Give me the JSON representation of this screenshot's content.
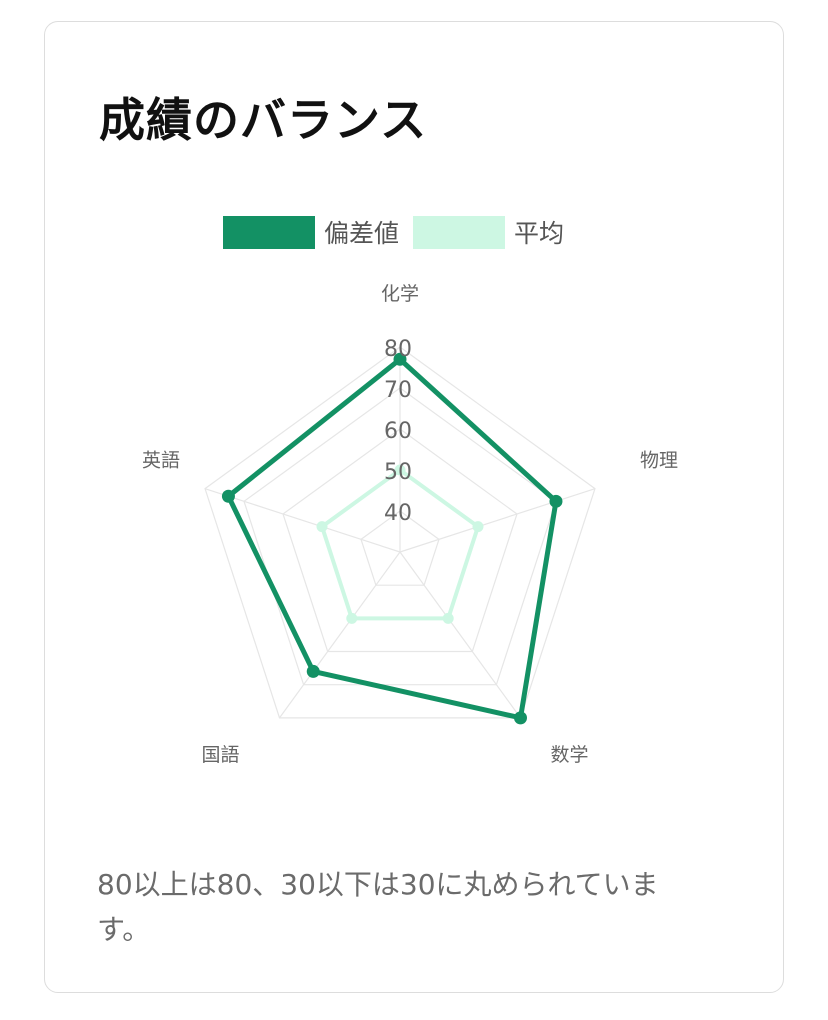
{
  "card": {
    "title": "成績のバランス",
    "note": "80以上は80、30以下は30に丸められています。"
  },
  "chart_data": {
    "type": "radar",
    "axes": [
      "化学",
      "物理",
      "数学",
      "国語",
      "英語"
    ],
    "r_ticks": [
      40,
      50,
      60,
      70,
      80
    ],
    "r_range": [
      30,
      80
    ],
    "grid": true,
    "legend_position": "top",
    "series": [
      {
        "name": "偏差値",
        "values": [
          77,
          70,
          80,
          66,
          74
        ],
        "color": "#139164"
      },
      {
        "name": "平均",
        "values": [
          50,
          50,
          50,
          50,
          50
        ],
        "color": "#cdf7e3"
      }
    ]
  }
}
